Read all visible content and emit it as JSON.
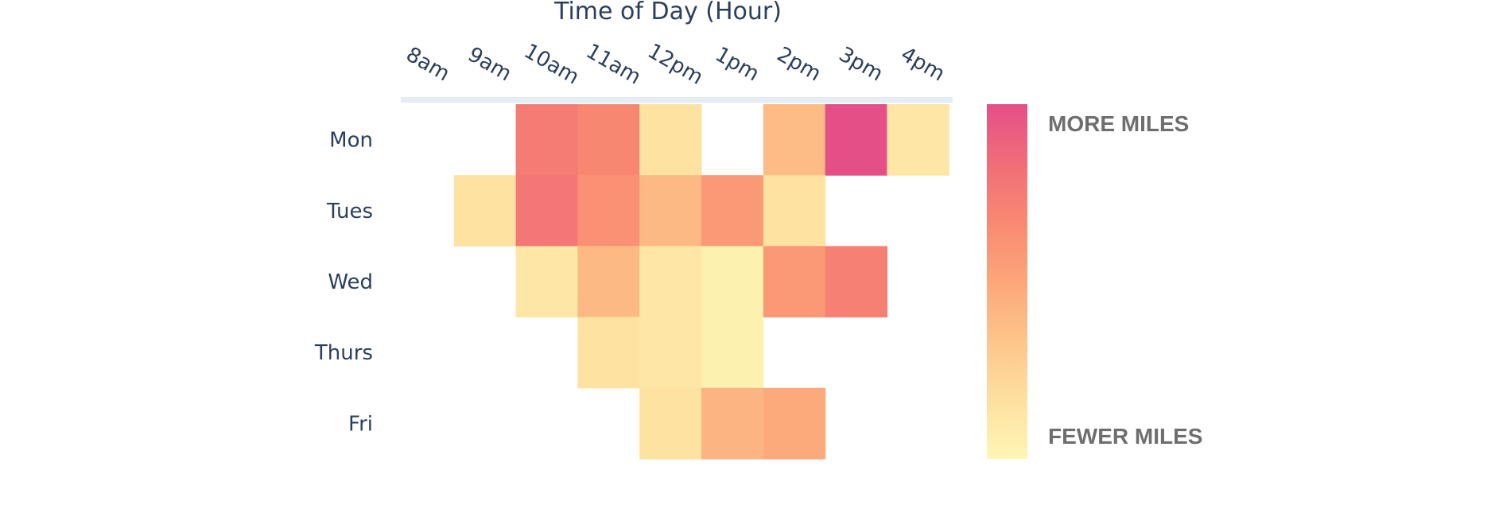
{
  "chart_data": {
    "type": "heatmap",
    "title": "Time of Day (Hour)",
    "x": [
      "8am",
      "9am",
      "10am",
      "11am",
      "12pm",
      "1pm",
      "2pm",
      "3pm",
      "4pm"
    ],
    "y": [
      "Mon",
      "Tues",
      "Wed",
      "Thurs",
      "Fri"
    ],
    "z": [
      [
        null,
        null,
        0.75,
        0.68,
        0.15,
        null,
        0.38,
        1.0,
        0.12
      ],
      [
        null,
        0.15,
        0.78,
        0.62,
        0.4,
        0.58,
        0.15,
        null,
        null
      ],
      [
        null,
        null,
        0.12,
        0.4,
        0.12,
        0.04,
        0.58,
        0.72,
        null
      ],
      [
        null,
        null,
        null,
        0.15,
        0.12,
        0.04,
        null,
        null,
        null
      ],
      [
        null,
        null,
        null,
        null,
        0.15,
        0.42,
        0.48,
        null,
        null
      ]
    ],
    "colorbar": {
      "high_label": "MORE MILES",
      "low_label": "FEWER MILES",
      "colors": [
        "#fdf6b5",
        "#fde0a0",
        "#fdc58a",
        "#fca67a",
        "#f98972",
        "#f16d78",
        "#e44f88"
      ]
    },
    "x_axis_side": "top",
    "axis_line_color": "#e5ecf6"
  }
}
